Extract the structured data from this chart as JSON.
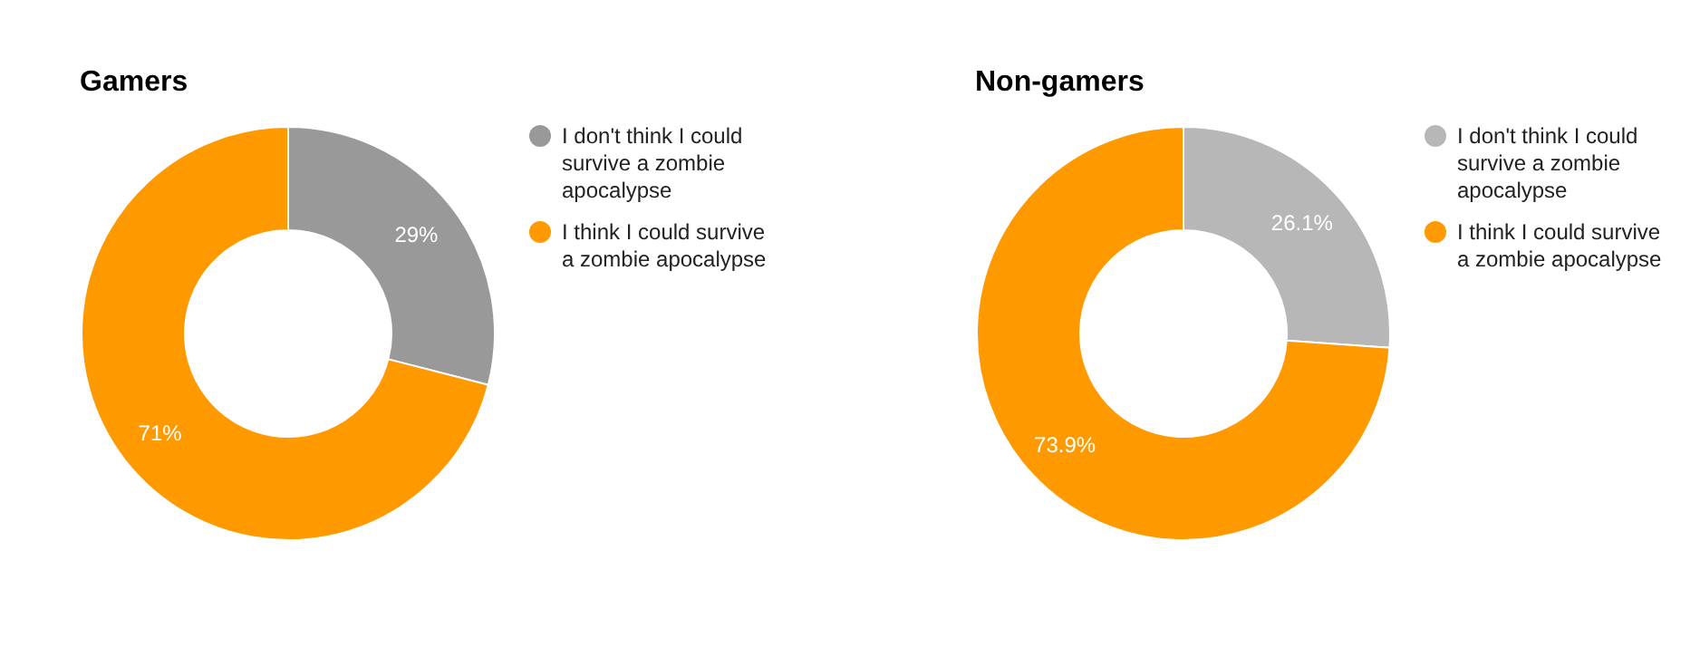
{
  "chart_data": [
    {
      "type": "donut",
      "title": "Gamers",
      "categories": [
        "I don't think I could survive a zombie apocalypse",
        "I think I could survive a zombie apocalypse"
      ],
      "values": [
        29,
        71
      ],
      "value_labels": [
        "29%",
        "71%"
      ],
      "colors": [
        "#999999",
        "#ff9900"
      ],
      "legend": "top right"
    },
    {
      "type": "donut",
      "title": "Non-gamers",
      "categories": [
        "I don't think I could survive a zombie apocalypse",
        "I think I could survive a zombie apocalypse"
      ],
      "values": [
        26.1,
        73.9
      ],
      "value_labels": [
        "26.1%",
        "73.9%"
      ],
      "colors": [
        "#b7b7b7",
        "#ff9900"
      ],
      "legend": "top right"
    }
  ]
}
